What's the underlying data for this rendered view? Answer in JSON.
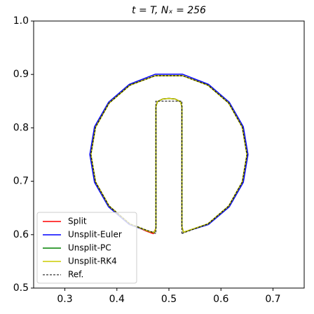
{
  "chart_data": {
    "type": "line",
    "title": "t = T, Nₓ = 256",
    "xlim": [
      0.24,
      0.76
    ],
    "xticks": [
      0.3,
      0.4,
      0.5,
      0.6,
      0.7
    ],
    "ylim": [
      0.5,
      1.0
    ],
    "yticks": [
      0.5,
      0.6,
      0.7,
      0.8,
      0.9,
      {
        "value": 1.0,
        "label": "1.0"
      }
    ],
    "legend": "lower left",
    "series": [
      {
        "name": "Split",
        "color": "#ff0000",
        "x": [
          0.528,
          0.525,
          0.525,
          0.522,
          0.512,
          0.5,
          0.488,
          0.478,
          0.475,
          0.475,
          0.47,
          0.458,
          0.425,
          0.3851,
          0.359,
          0.35,
          0.359,
          0.3851,
          0.425,
          0.474,
          0.526,
          0.575,
          0.6149,
          0.641,
          0.65,
          0.641,
          0.6149,
          0.575,
          0.528
        ],
        "values": [
          0.6045,
          0.615,
          0.84,
          0.849,
          0.854,
          0.855,
          0.854,
          0.849,
          0.84,
          0.612,
          0.602,
          0.606,
          0.6201,
          0.6536,
          0.6987,
          0.75,
          0.8013,
          0.8464,
          0.8799,
          0.8977,
          0.8977,
          0.8799,
          0.8464,
          0.8013,
          0.75,
          0.6987,
          0.6536,
          0.6201,
          0.6045
        ]
      },
      {
        "name": "Unsplit-Euler",
        "color": "#0000ff",
        "x": [
          0.528,
          0.525,
          0.525,
          0.522,
          0.512,
          0.5,
          0.488,
          0.478,
          0.475,
          0.475,
          0.472,
          0.462,
          0.424,
          0.384,
          0.357,
          0.348,
          0.357,
          0.384,
          0.424,
          0.474,
          0.526,
          0.576,
          0.616,
          0.643,
          0.652,
          0.643,
          0.616,
          0.576,
          0.528
        ],
        "values": [
          0.6045,
          0.615,
          0.84,
          0.849,
          0.854,
          0.855,
          0.854,
          0.849,
          0.84,
          0.612,
          0.604,
          0.606,
          0.619,
          0.652,
          0.698,
          0.75,
          0.802,
          0.848,
          0.8815,
          0.9005,
          0.9005,
          0.8815,
          0.848,
          0.802,
          0.75,
          0.698,
          0.652,
          0.619,
          0.6045
        ]
      },
      {
        "name": "Unsplit-PC",
        "color": "#008000",
        "x": [
          0.528,
          0.525,
          0.525,
          0.522,
          0.512,
          0.5,
          0.488,
          0.478,
          0.475,
          0.475,
          0.472,
          0.462,
          0.425,
          0.3851,
          0.359,
          0.35,
          0.359,
          0.3851,
          0.425,
          0.474,
          0.526,
          0.575,
          0.6149,
          0.641,
          0.65,
          0.641,
          0.6149,
          0.575,
          0.528
        ],
        "values": [
          0.6045,
          0.615,
          0.84,
          0.849,
          0.854,
          0.855,
          0.854,
          0.849,
          0.84,
          0.612,
          0.604,
          0.606,
          0.6201,
          0.6536,
          0.6987,
          0.75,
          0.8013,
          0.8464,
          0.8799,
          0.8977,
          0.8977,
          0.8799,
          0.8464,
          0.8013,
          0.75,
          0.6987,
          0.6536,
          0.6201,
          0.6045
        ]
      },
      {
        "name": "Unsplit-RK4",
        "color": "#cccc00",
        "x": [
          0.528,
          0.525,
          0.525,
          0.522,
          0.512,
          0.5,
          0.488,
          0.478,
          0.475,
          0.475,
          0.472,
          0.462,
          0.425,
          0.3851,
          0.359,
          0.35,
          0.359,
          0.3851,
          0.425,
          0.474,
          0.526,
          0.575,
          0.6149,
          0.641,
          0.65,
          0.641,
          0.6149,
          0.575,
          0.528
        ],
        "values": [
          0.6045,
          0.615,
          0.84,
          0.849,
          0.854,
          0.855,
          0.854,
          0.849,
          0.84,
          0.612,
          0.604,
          0.606,
          0.6201,
          0.6536,
          0.6987,
          0.75,
          0.8013,
          0.8464,
          0.8799,
          0.8977,
          0.8977,
          0.8799,
          0.8464,
          0.8013,
          0.75,
          0.6987,
          0.6536,
          0.6201,
          0.6045
        ]
      },
      {
        "name": "Ref.",
        "color": "#000000",
        "linestyle": "dashed",
        "x": [
          0.525,
          0.525,
          0.475,
          0.475,
          0.425,
          0.3851,
          0.359,
          0.35,
          0.359,
          0.3851,
          0.425,
          0.474,
          0.526,
          0.575,
          0.6149,
          0.641,
          0.65,
          0.641,
          0.6149,
          0.575,
          0.525
        ],
        "values": [
          0.6021,
          0.85,
          0.85,
          0.6021,
          0.6201,
          0.6536,
          0.6987,
          0.75,
          0.8013,
          0.8464,
          0.8799,
          0.8977,
          0.8977,
          0.8799,
          0.8464,
          0.8013,
          0.75,
          0.6987,
          0.6536,
          0.6201,
          0.6021
        ]
      }
    ]
  }
}
